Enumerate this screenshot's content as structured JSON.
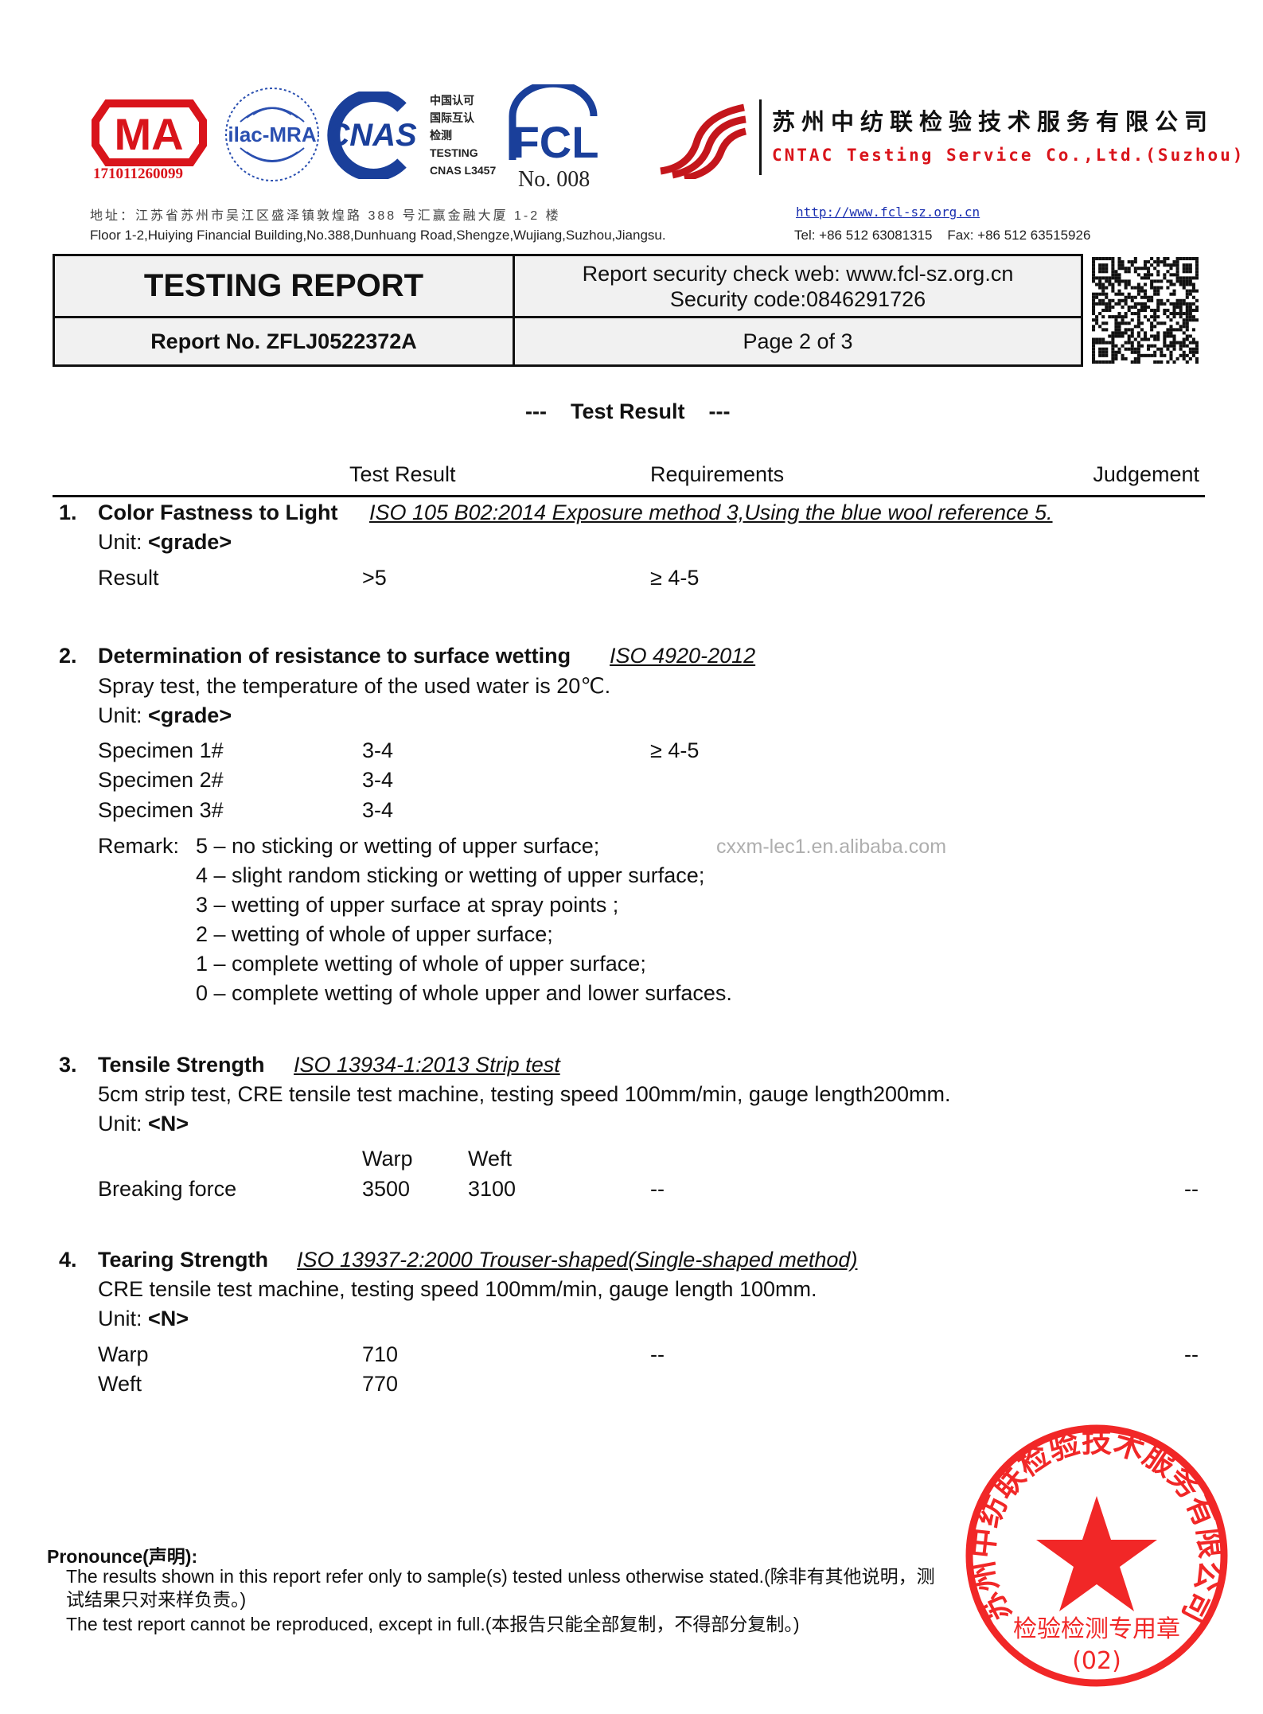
{
  "header": {
    "cma_logo_text": "MA",
    "cma_number": "171011260099",
    "ilac_logo_text": "ilac-MRA",
    "cnas_logo_text": "CNAS",
    "cnas_caption": [
      "中国认可",
      "国际互认",
      "检测",
      "TESTING",
      "CNAS L3457"
    ],
    "fcl_logo_text": "FCL",
    "fcl_number": "No. 008",
    "company_cn": "苏州中纺联检验技术服务有限公司",
    "company_en": "CNTAC Testing Service Co.,Ltd.(Suzhou)",
    "address_cn": "地址：江苏省苏州市吴江区盛泽镇敦煌路 388 号汇赢金融大厦 1-2 楼",
    "address_en": "Floor 1-2,Huiying Financial Building,No.388,Dunhuang Road,Shengze,Wujiang,Suzhou,Jiangsu.",
    "website": "http://www.fcl-sz.org.cn",
    "phone_fax": "Tel: +86 512 63081315    Fax: +86 512 63515926",
    "brand_red": "#d9141b",
    "brand_blue": "#1a3f9a"
  },
  "report_box": {
    "title": "TESTING REPORT",
    "security_web": "Report security check web: www.fcl-sz.org.cn",
    "security_code": "Security code:0846291726",
    "report_no": "Report No. ZFLJ0522372A",
    "page": "Page 2 of 3"
  },
  "section_title": {
    "dashes_left": "---",
    "label": "Test Result",
    "dashes_right": "---"
  },
  "columns": {
    "test_result": "Test Result",
    "requirements": "Requirements",
    "judgement": "Judgement"
  },
  "tests": [
    {
      "num": "1.",
      "title": "Color Fastness to Light",
      "method": "ISO 105 B02:2014 Exposure method 3,Using the blue wool reference 5.",
      "unit_label": "Unit: ",
      "unit": "<grade>",
      "rows": [
        {
          "label": "Result",
          "value": ">5",
          "requirement": "≥ 4-5"
        }
      ]
    },
    {
      "num": "2.",
      "title": "Determination of resistance to surface wetting",
      "method": "ISO 4920-2012",
      "description": "Spray test, the temperature of the used water is 20℃.",
      "unit_label": "Unit: ",
      "unit": "<grade>",
      "rows": [
        {
          "label": "Specimen 1#",
          "value": "3-4",
          "requirement": "≥ 4-5"
        },
        {
          "label": "Specimen 2#",
          "value": "3-4"
        },
        {
          "label": "Specimen 3#",
          "value": "3-4"
        }
      ],
      "remark_label": "Remark:",
      "remarks": [
        "5 – no sticking or wetting of upper surface;",
        "4 – slight random sticking or wetting of upper surface;",
        "3 – wetting of upper surface at spray points ;",
        "2 – wetting of whole of upper surface;",
        "1 – complete wetting of whole of upper surface;",
        "0 – complete wetting of whole upper and lower surfaces."
      ]
    },
    {
      "num": "3.",
      "title": "Tensile Strength",
      "method": "ISO 13934-1:2013 Strip test",
      "description": "5cm strip test, CRE tensile test machine, testing speed 100mm/min, gauge length200mm.",
      "unit_label": "Unit: ",
      "unit": "<N>",
      "subheaders": [
        "Warp",
        "Weft"
      ],
      "rows": [
        {
          "label": "Breaking force",
          "warp": "3500",
          "weft": "3100",
          "requirement": "--",
          "judgement": "--"
        }
      ]
    },
    {
      "num": "4.",
      "title": "Tearing Strength",
      "method": "ISO 13937-2:2000 Trouser-shaped(Single-shaped method)",
      "description": "CRE tensile test machine, testing speed 100mm/min, gauge length 100mm.",
      "unit_label": "Unit: ",
      "unit": "<N>",
      "rows": [
        {
          "label": "Warp",
          "value": "710",
          "requirement": "--",
          "judgement": "--"
        },
        {
          "label": "Weft",
          "value": "770"
        }
      ]
    }
  ],
  "watermark": "cxxm-lec1.en.alibaba.com",
  "pronounce": {
    "title": "Pronounce(声明):",
    "lines": [
      "The results shown in this report refer only to sample(s) tested unless otherwise stated.(除非有其他说明，测试结果只对来样负责。)",
      "The test report cannot be reproduced, except in full.(本报告只能全部复制，不得部分复制。)"
    ]
  },
  "stamp": {
    "ring_text": "苏州中纺联检验技术服务有限公司",
    "bottom_text": "检验检测专用章",
    "number": "(02)",
    "color": "#f01010"
  }
}
